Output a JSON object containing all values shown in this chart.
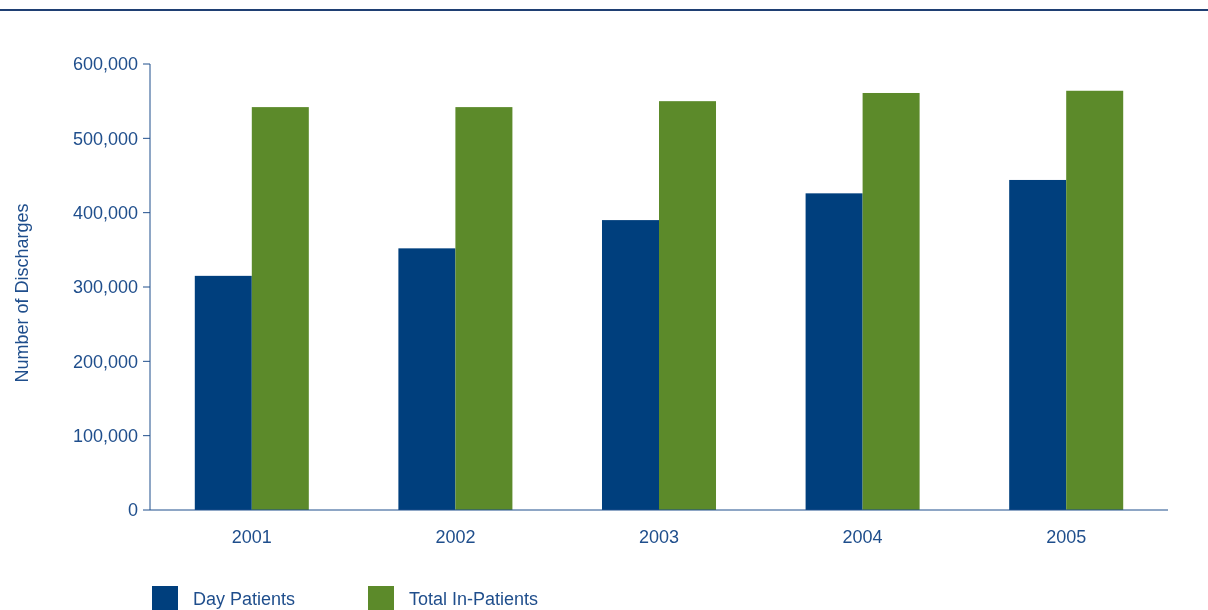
{
  "chart_data": {
    "type": "bar",
    "ylabel": "Number of Discharges",
    "categories": [
      "2001",
      "2002",
      "2003",
      "2004",
      "2005"
    ],
    "series": [
      {
        "name": "Day Patients",
        "color": "#003f7d",
        "values": [
          315000,
          352000,
          390000,
          426000,
          444000
        ]
      },
      {
        "name": "Total In-Patients",
        "color": "#5c8a2a",
        "values": [
          542000,
          542000,
          550000,
          561000,
          564000
        ]
      }
    ],
    "ylim": [
      0,
      600000
    ],
    "yticks": [
      {
        "value": 0,
        "label": "0"
      },
      {
        "value": 100000,
        "label": "100,000"
      },
      {
        "value": 200000,
        "label": "200,000"
      },
      {
        "value": 300000,
        "label": "300,000"
      },
      {
        "value": 400000,
        "label": "400,000"
      },
      {
        "value": 500000,
        "label": "500,000"
      },
      {
        "value": 600000,
        "label": "600,000"
      }
    ],
    "grid": false,
    "legend": "bottom left"
  }
}
